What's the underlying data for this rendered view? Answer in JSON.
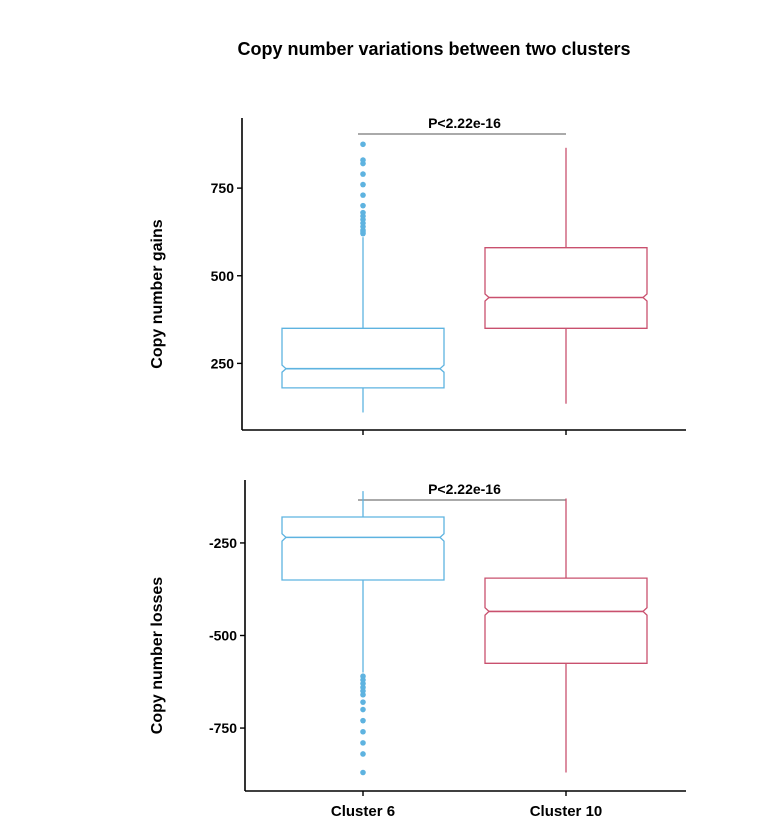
{
  "title": "Copy number variations between two clusters",
  "colors": {
    "cluster6": "#5eb3e0",
    "cluster10": "#c9506e",
    "axis": "#000000"
  },
  "chart_data": [
    {
      "type": "boxplot",
      "notched": true,
      "ylabel": "Copy number gains",
      "ylim": [
        60,
        950
      ],
      "yticks": [
        250,
        500,
        750
      ],
      "yticklabels": [
        "250",
        "500",
        "750"
      ],
      "categories": [
        "Cluster 6",
        "Cluster 10"
      ],
      "annotation": "P<2.22e-16",
      "groups": [
        {
          "category": "Cluster 6",
          "whisker_low": 110,
          "q1": 180,
          "median": 235,
          "q3": 350,
          "whisker_high": 610,
          "notch_low": 225,
          "notch_high": 245,
          "outliers": [
            620,
            625,
            630,
            640,
            650,
            660,
            670,
            680,
            700,
            730,
            760,
            790,
            820,
            830,
            875
          ]
        },
        {
          "category": "Cluster 10",
          "whisker_low": 135,
          "q1": 350,
          "median": 438,
          "q3": 580,
          "whisker_high": 865,
          "notch_low": 428,
          "notch_high": 448,
          "outliers": []
        }
      ]
    },
    {
      "type": "boxplot",
      "notched": true,
      "ylabel": "Copy number losses",
      "ylim": [
        -920,
        -80
      ],
      "yticks": [
        -250,
        -500,
        -750
      ],
      "yticklabels": [
        "-250",
        "-500",
        "-750"
      ],
      "categories": [
        "Cluster 6",
        "Cluster 10"
      ],
      "annotation": "P<2.22e-16",
      "groups": [
        {
          "category": "Cluster 6",
          "whisker_low": -600,
          "q1": -350,
          "median": -235,
          "q3": -180,
          "whisker_high": -110,
          "notch_low": -245,
          "notch_high": -225,
          "outliers": [
            -610,
            -620,
            -630,
            -640,
            -650,
            -660,
            -680,
            -700,
            -730,
            -760,
            -790,
            -820,
            -870
          ]
        },
        {
          "category": "Cluster 10",
          "whisker_low": -870,
          "q1": -575,
          "median": -435,
          "q3": -345,
          "whisker_high": -130,
          "notch_low": -445,
          "notch_high": -425,
          "outliers": []
        }
      ]
    }
  ]
}
